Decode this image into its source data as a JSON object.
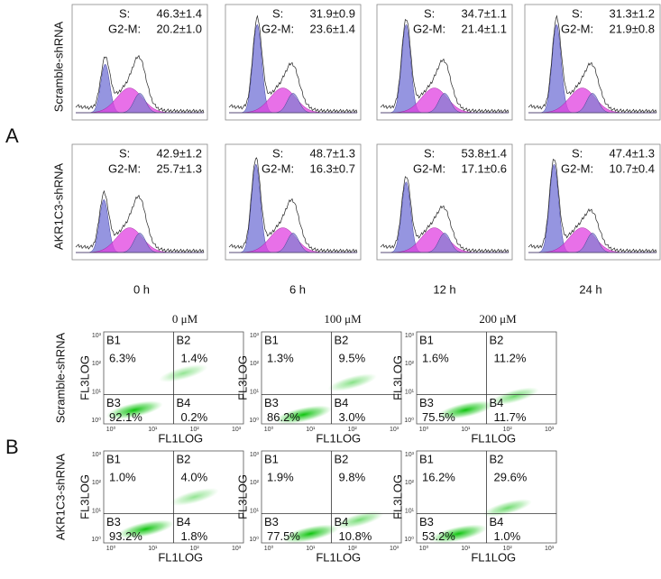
{
  "panel_a": {
    "label": "A",
    "s_label": "S:",
    "g2m_label": "G2-M:",
    "rows": [
      {
        "label": "Scramble-shRNA",
        "cells": [
          {
            "s": "46.3±1.4",
            "g2m": "20.2±1.0"
          },
          {
            "s": "31.9±0.9",
            "g2m": "23.6±1.4"
          },
          {
            "s": "34.7±1.1",
            "g2m": "21.4±1.1"
          },
          {
            "s": "31.3±1.2",
            "g2m": "21.9±0.8"
          }
        ]
      },
      {
        "label": "AKR1C3-shRNA",
        "cells": [
          {
            "s": "42.9±1.2",
            "g2m": "25.7±1.3"
          },
          {
            "s": "48.7±1.3",
            "g2m": "16.3±0.7"
          },
          {
            "s": "53.8±1.4",
            "g2m": "17.1±0.6"
          },
          {
            "s": "47.4±1.3",
            "g2m": "10.7±0.4"
          }
        ]
      }
    ],
    "times": [
      "0 h",
      "6 h",
      "12 h",
      "24 h"
    ]
  },
  "panel_b": {
    "label": "B",
    "doses": [
      "0 μM",
      "100 μM",
      "200 μM"
    ],
    "y_axis": "FL3LOG",
    "x_axis": "FL1LOG",
    "ticks": [
      "10⁰",
      "10¹",
      "10²",
      "10³"
    ],
    "quadrants": [
      "B1",
      "B2",
      "B3",
      "B4"
    ],
    "rows": [
      {
        "label": "Scramble-shRNA",
        "plots": [
          [
            "6.3%",
            "1.4%",
            "92.1%",
            "0.2%"
          ],
          [
            "1.3%",
            "9.5%",
            "86.2%",
            "3.0%"
          ],
          [
            "1.6%",
            "11.2%",
            "75.5%",
            "11.7%"
          ]
        ]
      },
      {
        "label": "AKR1C3-shRNA",
        "plots": [
          [
            "1.0%",
            "4.0%",
            "93.2%",
            "1.8%"
          ],
          [
            "1.9%",
            "9.8%",
            "77.5%",
            "10.8%"
          ],
          [
            "16.2%",
            "29.6%",
            "53.2%",
            "1.0%"
          ]
        ]
      }
    ]
  }
}
